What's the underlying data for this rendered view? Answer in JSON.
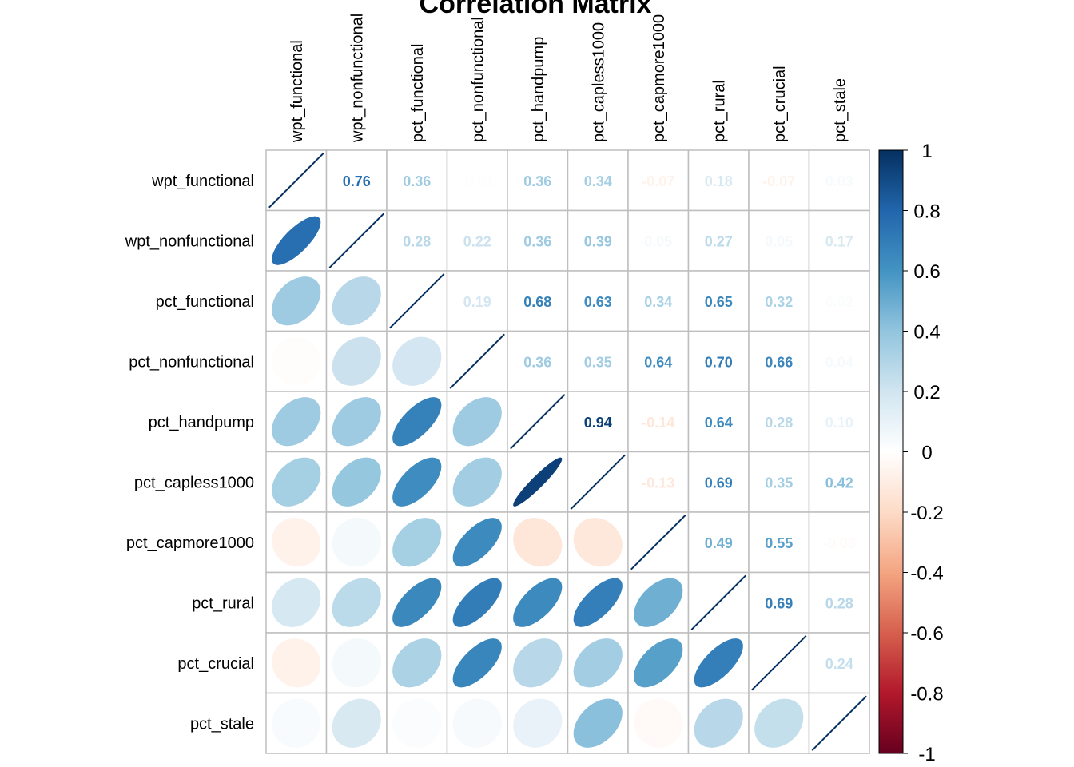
{
  "chart_data": {
    "type": "heatmap",
    "title": "Correlation Matrix",
    "variables": [
      "wpt_functional",
      "wpt_nonfunctional",
      "pct_functional",
      "pct_nonfunctional",
      "pct_handpump",
      "pct_capless1000",
      "pct_capmore1000",
      "pct_rural",
      "pct_crucial",
      "pct_stale"
    ],
    "matrix": [
      [
        1,
        0.76,
        0.36,
        -0.01,
        0.36,
        0.34,
        -0.07,
        0.18,
        -0.07,
        0.03
      ],
      [
        0.76,
        1,
        0.28,
        0.22,
        0.36,
        0.39,
        0.05,
        0.27,
        0.05,
        0.17
      ],
      [
        0.36,
        0.28,
        1,
        0.19,
        0.68,
        0.63,
        0.34,
        0.65,
        0.32,
        0.02
      ],
      [
        -0.01,
        0.22,
        0.19,
        1,
        0.36,
        0.35,
        0.64,
        0.7,
        0.66,
        0.04
      ],
      [
        0.36,
        0.36,
        0.68,
        0.36,
        1,
        0.94,
        -0.14,
        0.64,
        0.28,
        0.1
      ],
      [
        0.34,
        0.39,
        0.63,
        0.35,
        0.94,
        1,
        -0.13,
        0.69,
        0.35,
        0.42
      ],
      [
        -0.07,
        0.05,
        0.34,
        0.64,
        -0.14,
        -0.13,
        1,
        0.49,
        0.55,
        -0.03
      ],
      [
        0.18,
        0.27,
        0.65,
        0.7,
        0.64,
        0.69,
        0.49,
        1,
        0.69,
        0.28
      ],
      [
        -0.07,
        0.05,
        0.32,
        0.66,
        0.28,
        0.35,
        0.55,
        0.69,
        1,
        0.24
      ],
      [
        0.03,
        0.17,
        0.02,
        0.04,
        0.1,
        0.42,
        -0.03,
        0.28,
        0.24,
        1
      ]
    ],
    "lower_method": "ellipse",
    "upper_method": "number",
    "colorbar": {
      "range": [
        -1,
        1
      ],
      "ticks": [
        "1",
        "0.8",
        "0.6",
        "0.4",
        "0.2",
        "0",
        "-0.2",
        "-0.4",
        "-0.6",
        "-0.8",
        "-1"
      ]
    },
    "colors": {
      "negative_end": "#67001F",
      "neutral": "#FFFFFF",
      "positive_end": "#053061",
      "grid": "#BEBEBE"
    }
  }
}
